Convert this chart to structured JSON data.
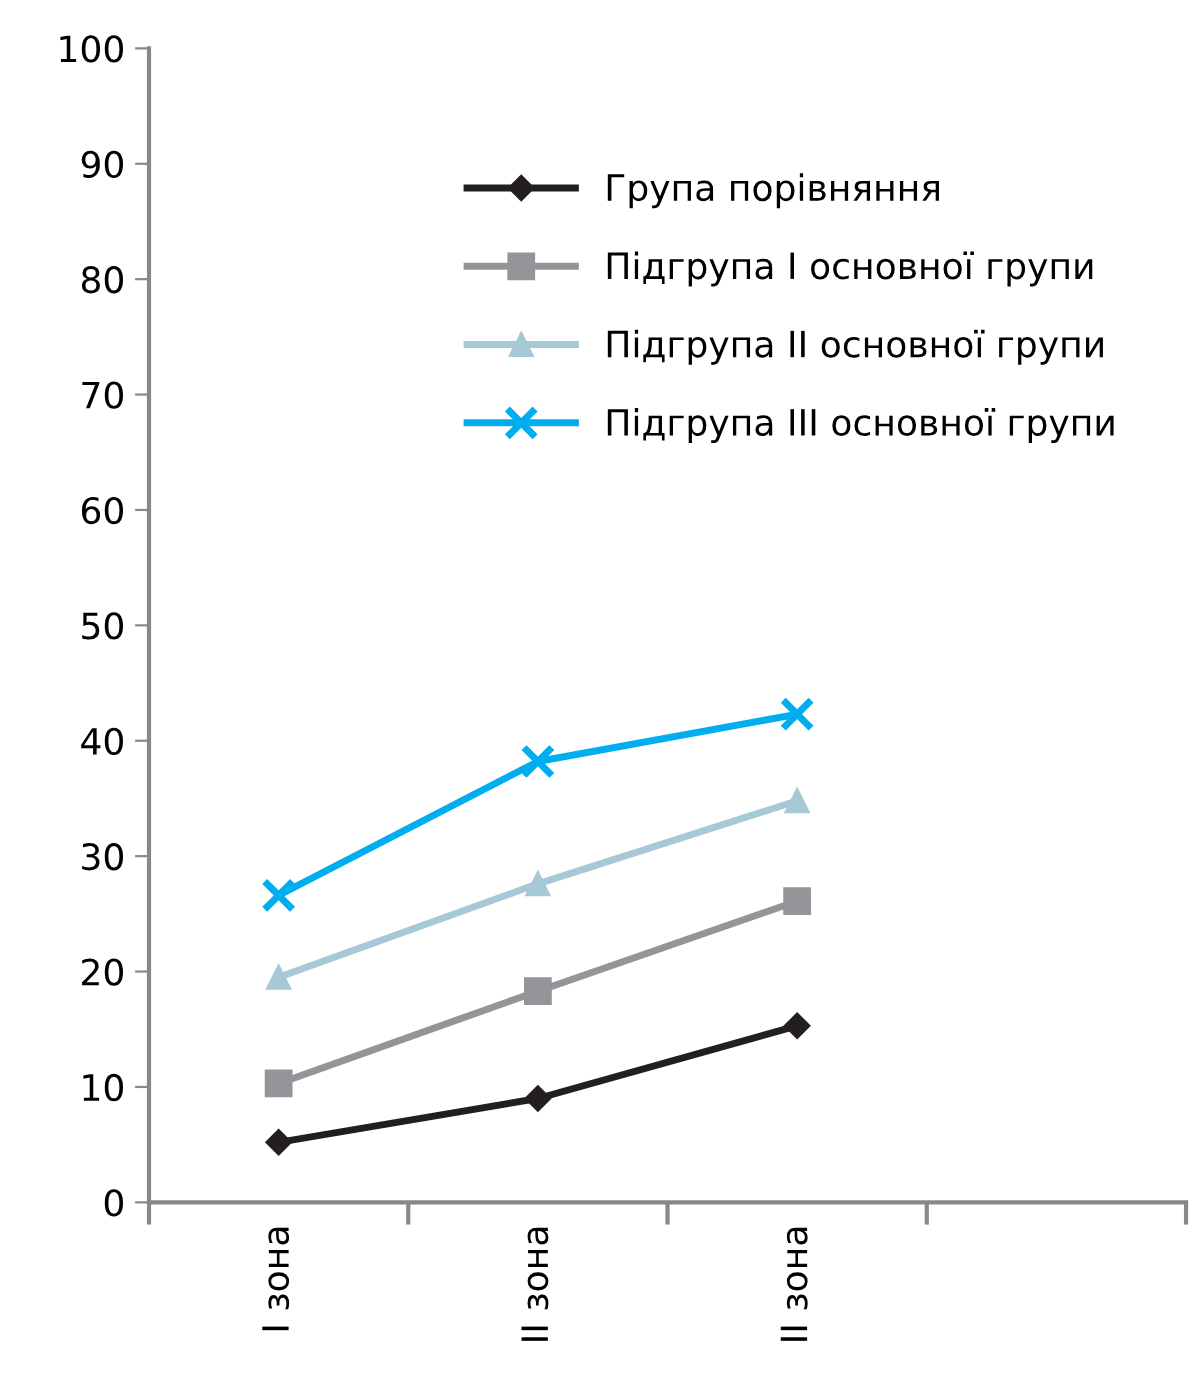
{
  "chart_data": {
    "type": "line",
    "categories": [
      "I зона",
      "II зона",
      "II зона",
      null
    ],
    "series": [
      {
        "name": "Група порівняння",
        "color": "#231f20",
        "marker": "diamond",
        "values": [
          5.2,
          9,
          15.3,
          null
        ]
      },
      {
        "name": "Підгрупа I основної групи",
        "color": "#939598",
        "marker": "square",
        "values": [
          10.3,
          18.3,
          26.1,
          null
        ]
      },
      {
        "name": "Підгрупа II основної групи",
        "color": "#a7c8d6",
        "marker": "triangle",
        "values": [
          19.5,
          27.6,
          34.8,
          null
        ]
      },
      {
        "name": "Підгрупа III основної групи",
        "color": "#00aeef",
        "marker": "cross",
        "values": [
          26.6,
          38.2,
          42.3,
          null
        ]
      }
    ],
    "ylim": [
      0,
      100
    ],
    "yticks": [
      0,
      10,
      20,
      30,
      40,
      50,
      60,
      70,
      80,
      90,
      100
    ],
    "grid": false,
    "legend": "top",
    "line_style": "solid"
  }
}
